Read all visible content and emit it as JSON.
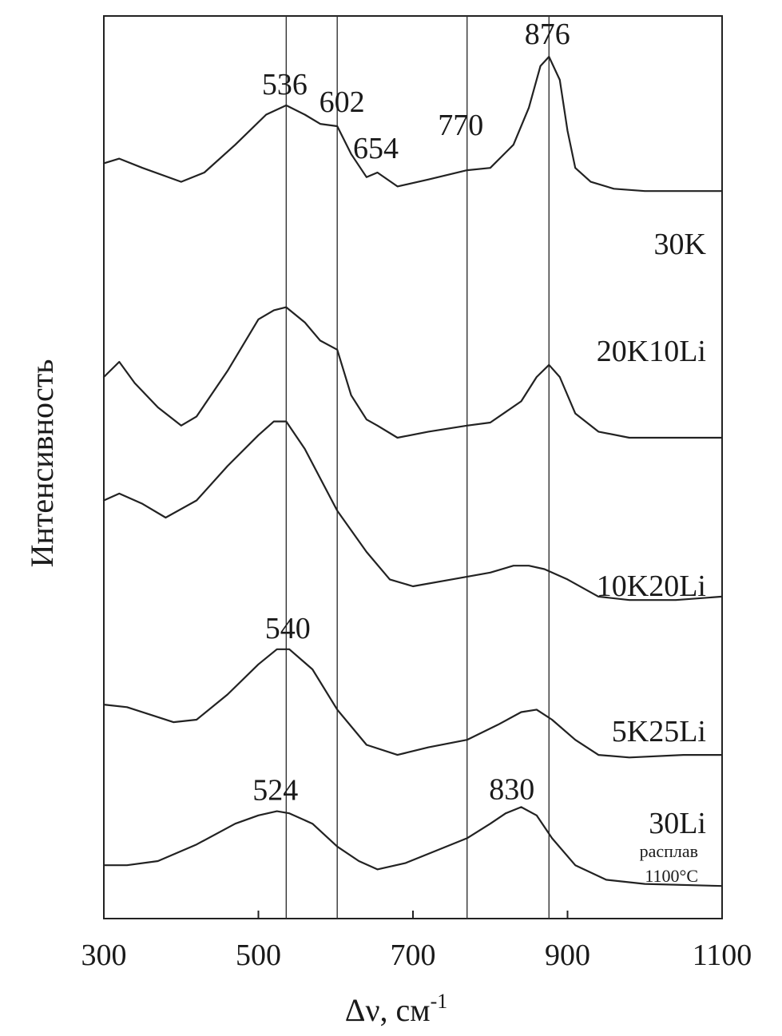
{
  "chart_data": {
    "type": "line",
    "xlabel": "Δν, см",
    "xlabel_superscript": "-1",
    "ylabel": "Интенсивность",
    "xlim": [
      300,
      1100
    ],
    "xticks": [
      "300",
      "500",
      "700",
      "900",
      "1100"
    ],
    "y_ticks_shown": false,
    "grid": false,
    "reference_lines_x": [
      536,
      602,
      770,
      876
    ],
    "series": [
      {
        "name": "30K",
        "x": [
          300,
          320,
          350,
          400,
          430,
          470,
          510,
          536,
          560,
          580,
          602,
          620,
          640,
          654,
          680,
          720,
          770,
          800,
          830,
          850,
          865,
          876,
          890,
          900,
          910,
          930,
          960,
          1000,
          1100
        ],
        "y": [
          0.64,
          0.66,
          0.62,
          0.56,
          0.6,
          0.72,
          0.85,
          0.89,
          0.85,
          0.81,
          0.8,
          0.68,
          0.58,
          0.6,
          0.54,
          0.57,
          0.61,
          0.62,
          0.72,
          0.88,
          1.06,
          1.1,
          1.0,
          0.78,
          0.62,
          0.56,
          0.53,
          0.52,
          0.52
        ]
      },
      {
        "name": "20K10Li",
        "x": [
          300,
          320,
          340,
          370,
          400,
          420,
          460,
          500,
          520,
          536,
          560,
          580,
          602,
          620,
          640,
          654,
          680,
          720,
          770,
          800,
          840,
          860,
          876,
          890,
          910,
          940,
          980,
          1100
        ],
        "y": [
          0.6,
          0.65,
          0.58,
          0.5,
          0.44,
          0.47,
          0.62,
          0.79,
          0.82,
          0.83,
          0.78,
          0.72,
          0.69,
          0.54,
          0.46,
          0.44,
          0.4,
          0.42,
          0.44,
          0.45,
          0.52,
          0.6,
          0.64,
          0.6,
          0.48,
          0.42,
          0.4,
          0.4
        ]
      },
      {
        "name": "10K20Li",
        "x": [
          300,
          320,
          350,
          380,
          420,
          460,
          500,
          520,
          536,
          560,
          602,
          640,
          670,
          700,
          750,
          800,
          830,
          850,
          870,
          900,
          940,
          980,
          1040,
          1100
        ],
        "y": [
          0.45,
          0.47,
          0.44,
          0.4,
          0.45,
          0.55,
          0.64,
          0.68,
          0.68,
          0.6,
          0.42,
          0.3,
          0.22,
          0.2,
          0.22,
          0.24,
          0.26,
          0.26,
          0.25,
          0.22,
          0.17,
          0.16,
          0.16,
          0.17
        ]
      },
      {
        "name": "5K25Li",
        "x": [
          300,
          330,
          360,
          390,
          420,
          460,
          500,
          524,
          540,
          570,
          602,
          640,
          680,
          720,
          770,
          810,
          840,
          860,
          880,
          910,
          940,
          980,
          1050,
          1100
        ],
        "y": [
          0.66,
          0.65,
          0.62,
          0.59,
          0.6,
          0.7,
          0.82,
          0.88,
          0.88,
          0.8,
          0.64,
          0.5,
          0.46,
          0.49,
          0.52,
          0.58,
          0.63,
          0.64,
          0.6,
          0.52,
          0.46,
          0.45,
          0.46,
          0.46
        ]
      },
      {
        "name": "30Li",
        "x": [
          300,
          330,
          370,
          420,
          470,
          500,
          524,
          540,
          570,
          602,
          630,
          654,
          690,
          730,
          770,
          800,
          820,
          840,
          860,
          880,
          910,
          950,
          1000,
          1100
        ],
        "y": [
          0.18,
          0.18,
          0.2,
          0.28,
          0.38,
          0.42,
          0.44,
          0.43,
          0.38,
          0.27,
          0.2,
          0.16,
          0.19,
          0.25,
          0.31,
          0.38,
          0.43,
          0.46,
          0.42,
          0.31,
          0.18,
          0.11,
          0.09,
          0.08
        ]
      }
    ],
    "series_labels": [
      "30K",
      "20K10Li",
      "10K20Li",
      "5K25Li",
      "30Li"
    ],
    "series_note_lines": [
      "расплав",
      "1100°C"
    ],
    "peak_labels": [
      {
        "text": "536",
        "series": "30K",
        "x": 536
      },
      {
        "text": "602",
        "series": "30K",
        "x": 602
      },
      {
        "text": "654",
        "series": "30K",
        "x": 654
      },
      {
        "text": "770",
        "series": "30K",
        "x": 770
      },
      {
        "text": "876",
        "series": "30K",
        "x": 876
      },
      {
        "text": "540",
        "series": "5K25Li",
        "x": 540
      },
      {
        "text": "524",
        "series": "30Li",
        "x": 524
      },
      {
        "text": "830",
        "series": "30Li",
        "x": 830
      }
    ]
  }
}
